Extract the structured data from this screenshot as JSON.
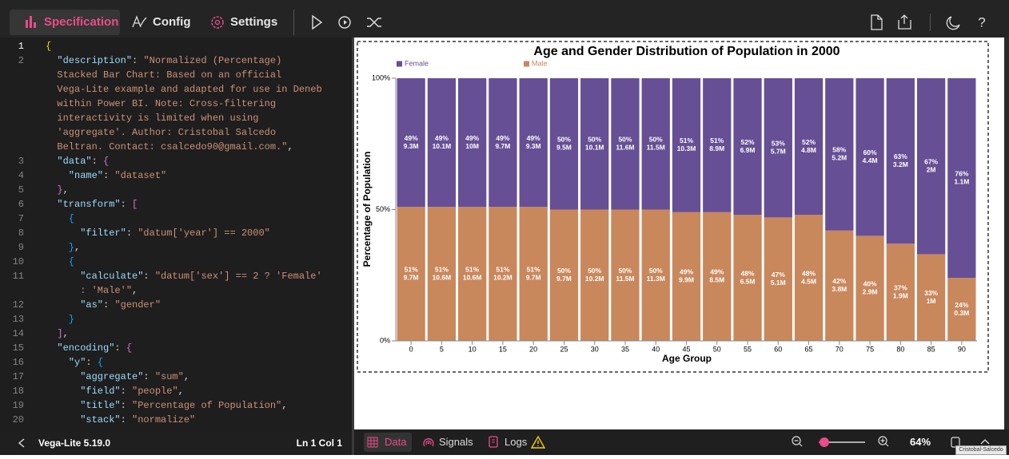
{
  "toolbar": {
    "tabs": [
      "Specification",
      "Config",
      "Settings"
    ]
  },
  "editor": {
    "rows": [
      {
        "number": 1,
        "tokens": [
          [
            "{",
            "bracket1"
          ]
        ]
      },
      {
        "number": 2,
        "tokens": [
          [
            "  \"description\"",
            "key"
          ],
          [
            ": ",
            "punct"
          ],
          [
            "\"Normalized (Percentage)",
            "string"
          ]
        ]
      },
      {
        "tokens": [
          [
            "  Stacked Bar Chart: Based on an official",
            "string"
          ]
        ]
      },
      {
        "tokens": [
          [
            "  Vega-Lite example and adapted for use in Deneb",
            "string"
          ]
        ]
      },
      {
        "tokens": [
          [
            "  within Power BI. Note: Cross-filtering",
            "string"
          ]
        ]
      },
      {
        "tokens": [
          [
            "  interactivity is limited when using",
            "string"
          ]
        ]
      },
      {
        "tokens": [
          [
            "  'aggregate'. Author: Cristobal Salcedo",
            "string"
          ]
        ]
      },
      {
        "tokens": [
          [
            "  Beltran. Contact: csalcedo90@gmail.com.\"",
            "string"
          ],
          [
            ",",
            "punct"
          ]
        ]
      },
      {
        "number": 3,
        "tokens": [
          [
            "  \"data\"",
            "key"
          ],
          [
            ": ",
            "punct"
          ],
          [
            "{",
            "bracket2"
          ]
        ]
      },
      {
        "number": 4,
        "tokens": [
          [
            "    \"name\"",
            "key"
          ],
          [
            ": ",
            "punct"
          ],
          [
            "\"dataset\"",
            "string"
          ]
        ]
      },
      {
        "number": 5,
        "tokens": [
          [
            "  }",
            "bracket2"
          ],
          [
            ",",
            "punct"
          ]
        ]
      },
      {
        "number": 6,
        "tokens": [
          [
            "  \"transform\"",
            "key"
          ],
          [
            ": ",
            "punct"
          ],
          [
            "[",
            "bracket2"
          ]
        ]
      },
      {
        "number": 7,
        "tokens": [
          [
            "    {",
            "bracket3"
          ]
        ]
      },
      {
        "number": 8,
        "tokens": [
          [
            "      \"filter\"",
            "key"
          ],
          [
            ": ",
            "punct"
          ],
          [
            "\"datum['year'] == 2000\"",
            "string"
          ]
        ]
      },
      {
        "number": 9,
        "tokens": [
          [
            "    }",
            "bracket3"
          ],
          [
            ",",
            "punct"
          ]
        ]
      },
      {
        "number": 10,
        "tokens": [
          [
            "    {",
            "bracket3"
          ]
        ]
      },
      {
        "number": 11,
        "tokens": [
          [
            "      \"calculate\"",
            "key"
          ],
          [
            ": ",
            "punct"
          ],
          [
            "\"datum['sex'] == 2 ? 'Female'",
            "string"
          ]
        ]
      },
      {
        "tokens": [
          [
            "      : 'Male'\"",
            "string"
          ],
          [
            ",",
            "punct"
          ]
        ]
      },
      {
        "number": 12,
        "tokens": [
          [
            "      \"as\"",
            "key"
          ],
          [
            ": ",
            "punct"
          ],
          [
            "\"gender\"",
            "string"
          ]
        ]
      },
      {
        "number": 13,
        "tokens": [
          [
            "    }",
            "bracket3"
          ]
        ]
      },
      {
        "number": 14,
        "tokens": [
          [
            "  ]",
            "bracket2"
          ],
          [
            ",",
            "punct"
          ]
        ]
      },
      {
        "number": 15,
        "tokens": [
          [
            "  \"encoding\"",
            "key"
          ],
          [
            ": ",
            "punct"
          ],
          [
            "{",
            "bracket2"
          ]
        ]
      },
      {
        "number": 16,
        "tokens": [
          [
            "    \"y\"",
            "key"
          ],
          [
            ": ",
            "punct"
          ],
          [
            "{",
            "bracket3"
          ]
        ]
      },
      {
        "number": 17,
        "tokens": [
          [
            "      \"aggregate\"",
            "key"
          ],
          [
            ": ",
            "punct"
          ],
          [
            "\"sum\"",
            "string"
          ],
          [
            ",",
            "punct"
          ]
        ]
      },
      {
        "number": 18,
        "tokens": [
          [
            "      \"field\"",
            "key"
          ],
          [
            ": ",
            "punct"
          ],
          [
            "\"people\"",
            "string"
          ],
          [
            ",",
            "punct"
          ]
        ]
      },
      {
        "number": 19,
        "tokens": [
          [
            "      \"title\"",
            "key"
          ],
          [
            ": ",
            "punct"
          ],
          [
            "\"Percentage of Population\"",
            "string"
          ],
          [
            ",",
            "punct"
          ]
        ]
      },
      {
        "number": 20,
        "tokens": [
          [
            "      \"stack\"",
            "key"
          ],
          [
            ": ",
            "punct"
          ],
          [
            "\"normalize\"",
            "string"
          ]
        ]
      }
    ]
  },
  "status_bar": {
    "version": "Vega-Lite 5.19.0",
    "position": "Ln 1 Col 1"
  },
  "preview_bar": {
    "tabs": [
      "Data",
      "Signals",
      "Logs"
    ],
    "zoom": "64%"
  },
  "tooltip": "Cristobal-Salcedo",
  "chart_data": {
    "type": "bar",
    "title": "Age and Gender Distribution of Population in 2000",
    "x_title": "Age Group",
    "y_title": "Percentage of Population",
    "categories": [
      "0",
      "5",
      "10",
      "15",
      "20",
      "25",
      "30",
      "35",
      "40",
      "45",
      "50",
      "55",
      "60",
      "65",
      "70",
      "75",
      "80",
      "85",
      "90"
    ],
    "series": [
      {
        "name": "Female",
        "color": "#664f94",
        "values": [
          49,
          49,
          49,
          49,
          49,
          50,
          50,
          50,
          50,
          51,
          51,
          52,
          53,
          52,
          58,
          60,
          63,
          67,
          76
        ],
        "value_labels": [
          "49%",
          "49%",
          "49%",
          "49%",
          "49%",
          "50%",
          "50%",
          "50%",
          "50%",
          "51%",
          "51%",
          "52%",
          "53%",
          "52%",
          "58%",
          "60%",
          "63%",
          "67%",
          "76%"
        ],
        "people_labels": [
          "9.3M",
          "10.1M",
          "10M",
          "9.7M",
          "9.3M",
          "9.5M",
          "10.1M",
          "11.6M",
          "11.5M",
          "10.3M",
          "8.9M",
          "6.9M",
          "5.7M",
          "4.8M",
          "5.2M",
          "4.4M",
          "3.2M",
          "2M",
          "1.1M"
        ]
      },
      {
        "name": "Male",
        "color": "#c9875c",
        "values": [
          51,
          51,
          51,
          51,
          51,
          50,
          50,
          50,
          50,
          49,
          49,
          48,
          47,
          48,
          42,
          40,
          37,
          33,
          24
        ],
        "value_labels": [
          "51%",
          "51%",
          "51%",
          "51%",
          "51%",
          "50%",
          "50%",
          "50%",
          "50%",
          "49%",
          "49%",
          "48%",
          "47%",
          "48%",
          "42%",
          "40%",
          "37%",
          "33%",
          "24%"
        ],
        "people_labels": [
          "9.7M",
          "10.6M",
          "10.6M",
          "10.2M",
          "9.7M",
          "9.7M",
          "10.2M",
          "11.5M",
          "11.3M",
          "9.9M",
          "8.5M",
          "6.5M",
          "5.1M",
          "4.5M",
          "3.8M",
          "2.9M",
          "1.9M",
          "1M",
          "0.3M"
        ]
      }
    ],
    "ylim": [
      0,
      100
    ],
    "yticks": [
      {
        "value": 0,
        "label": "0%"
      },
      {
        "value": 50,
        "label": "50%"
      },
      {
        "value": 100,
        "label": "100%"
      }
    ],
    "legend": "top-left",
    "stacked": true
  }
}
